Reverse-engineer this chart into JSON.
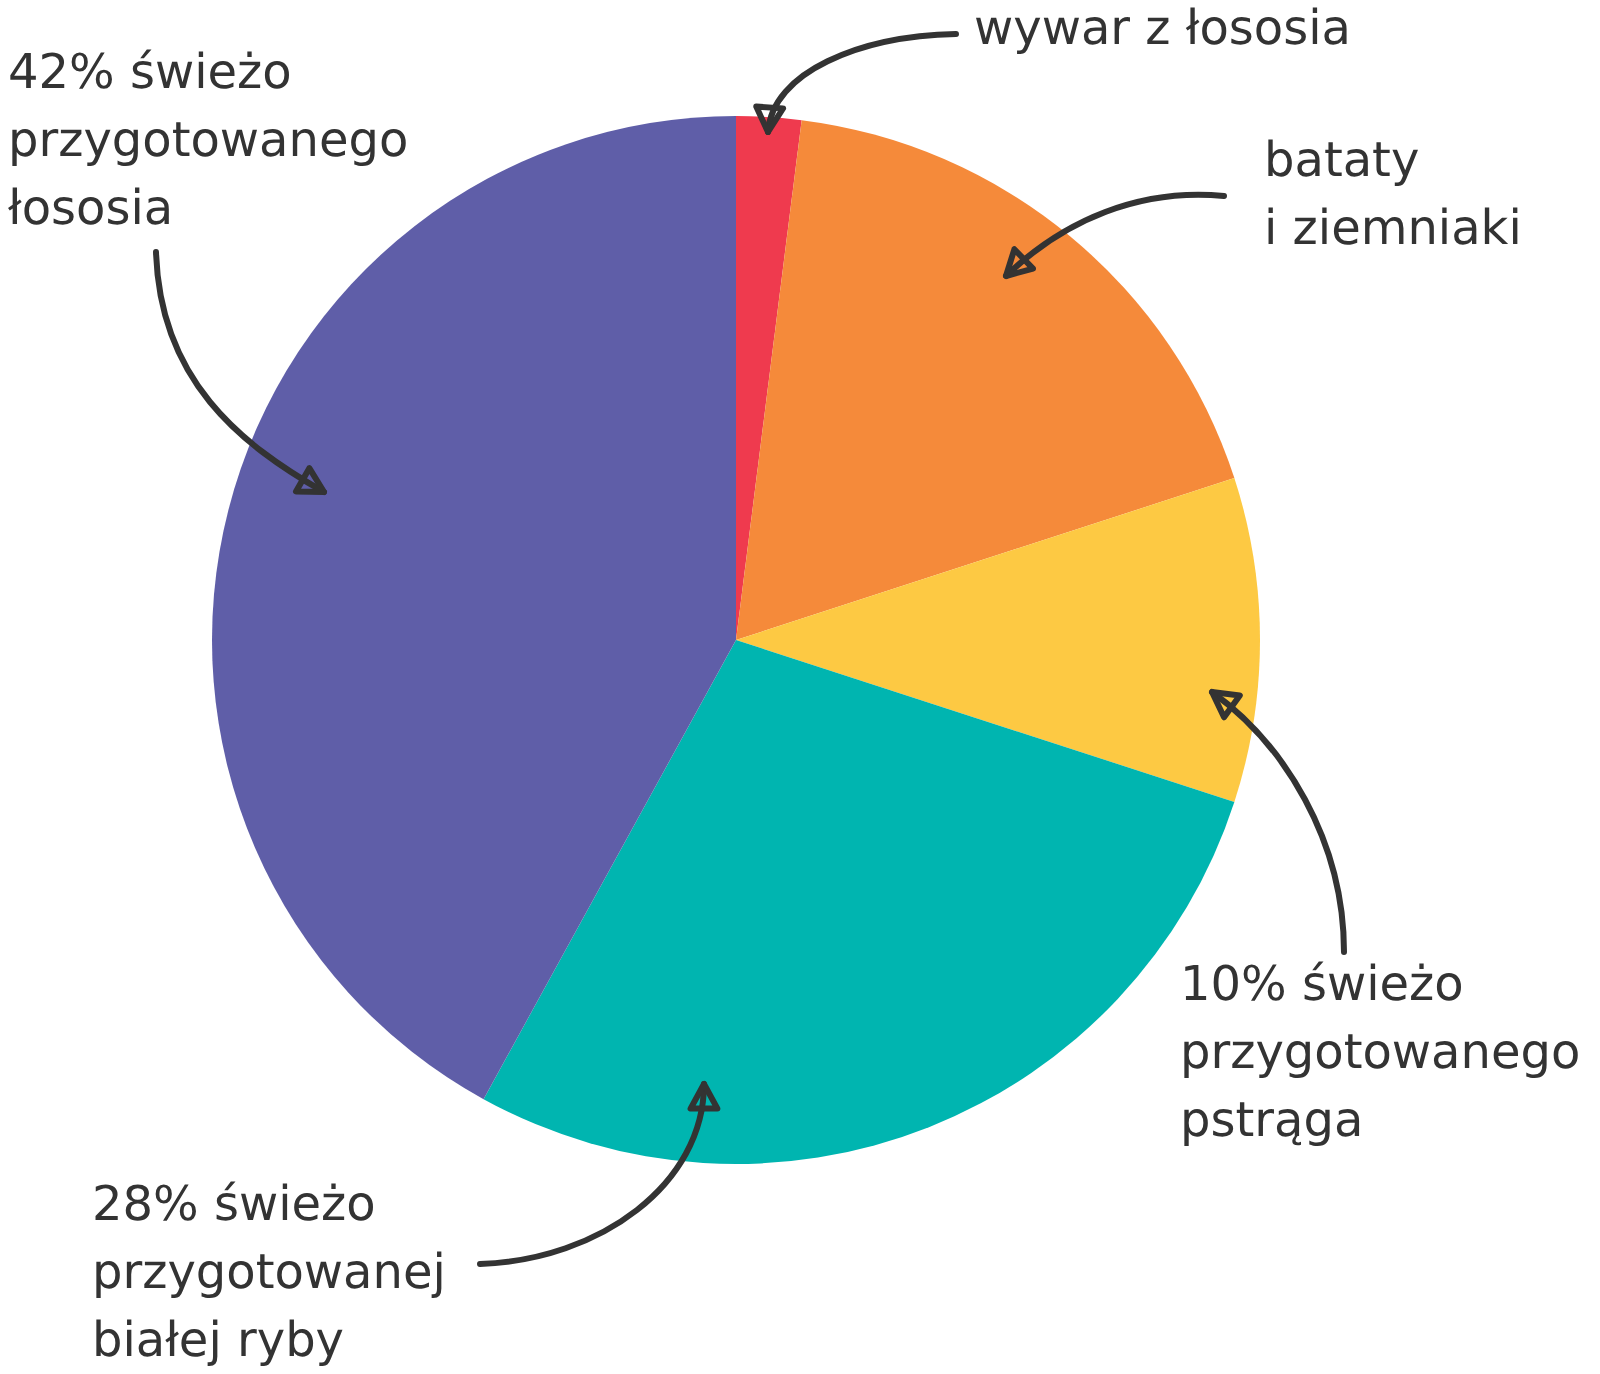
{
  "chart_data": {
    "type": "pie",
    "categories": [
      "wywar z łososia",
      "bataty i ziemniaki",
      "świeżo przygotowanego pstrąga",
      "świeżo przygotowanej białej ryby",
      "świeżo przygotowanego łososia"
    ],
    "values": [
      2,
      18,
      10,
      28,
      42
    ],
    "value_labels": [
      null,
      null,
      "10%",
      "28%",
      "42%"
    ],
    "colors": [
      "#ef3a4e",
      "#f58a3a",
      "#fdc943",
      "#00b5b0",
      "#5f5ea8"
    ]
  }
}
